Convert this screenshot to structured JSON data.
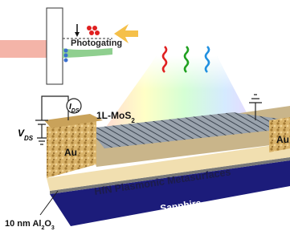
{
  "inset": {
    "label": "Photogating"
  },
  "labels": {
    "current": {
      "symbol": "I",
      "subscript": "DS"
    },
    "voltage": {
      "symbol": "V",
      "subscript": "DS"
    },
    "monolayer": {
      "text": "1L-MoS",
      "subscript": "2"
    },
    "electrode_left": "Au",
    "electrode_right": "Au",
    "metasurface": "HfN Plasmonic Metasurfaces",
    "substrate": "Sapphire",
    "oxide": {
      "text": "10 nm Al",
      "subscript": "2",
      "middle": "O",
      "subscript2": "3"
    }
  }
}
